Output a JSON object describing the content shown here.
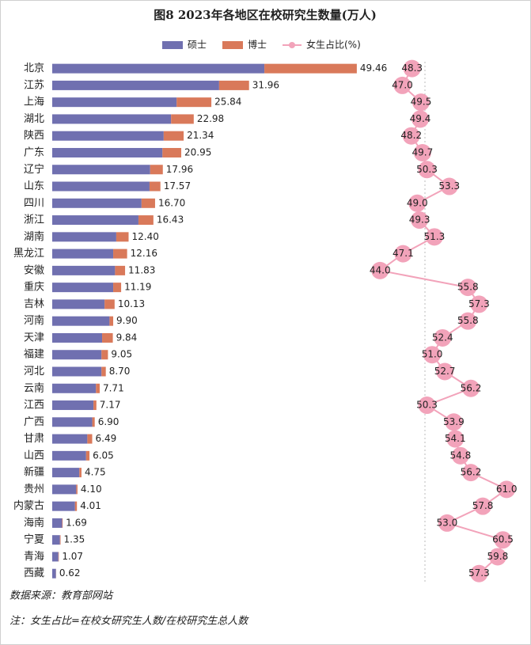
{
  "chart_data": {
    "type": "bar",
    "orientation": "horizontal",
    "stacked": true,
    "title": "图8 2023年各地区在校研究生数量(万人)",
    "categories": [
      "北京",
      "江苏",
      "上海",
      "湖北",
      "陕西",
      "广东",
      "辽宁",
      "山东",
      "四川",
      "浙江",
      "湖南",
      "黑龙江",
      "安徽",
      "重庆",
      "吉林",
      "河南",
      "天津",
      "福建",
      "河北",
      "云南",
      "江西",
      "广西",
      "甘肃",
      "山西",
      "新疆",
      "贵州",
      "内蒙古",
      "海南",
      "宁夏",
      "青海",
      "西藏"
    ],
    "xlim": [
      0,
      55
    ],
    "x2lim": [
      41,
      63
    ],
    "series": [
      {
        "name": "硕士",
        "color": "#7070b0",
        "values": [
          34.45,
          27.1,
          20.2,
          19.3,
          18.1,
          17.9,
          15.9,
          15.8,
          14.5,
          14.0,
          10.4,
          9.9,
          10.2,
          9.9,
          8.5,
          9.3,
          8.1,
          8.0,
          8.0,
          7.1,
          6.7,
          6.5,
          5.7,
          5.5,
          4.4,
          3.9,
          3.7,
          1.6,
          1.25,
          1.0,
          0.6
        ]
      },
      {
        "name": "博士",
        "color": "#d9795a",
        "values": [
          15.01,
          4.86,
          5.64,
          3.68,
          3.24,
          3.05,
          2.06,
          1.77,
          2.2,
          2.43,
          2.0,
          2.26,
          1.63,
          1.29,
          1.63,
          0.6,
          1.74,
          1.05,
          0.7,
          0.61,
          0.47,
          0.4,
          0.79,
          0.55,
          0.35,
          0.2,
          0.31,
          0.09,
          0.1,
          0.07,
          0.02
        ]
      },
      {
        "name": "女生占比(%)",
        "type": "line",
        "axis": "x2",
        "color": "#f2a3ba",
        "values": [
          48.3,
          47.0,
          49.5,
          49.4,
          48.2,
          49.7,
          50.3,
          53.3,
          49.0,
          49.3,
          51.3,
          47.1,
          44.0,
          55.8,
          57.3,
          55.8,
          52.4,
          51.0,
          52.7,
          56.2,
          50.3,
          53.9,
          54.1,
          54.8,
          56.2,
          61.0,
          57.8,
          53.0,
          60.5,
          59.8,
          57.3
        ],
        "value_labels": [
          "48.3",
          "47.0",
          "49.5",
          "49.4",
          "48.2",
          "49.7",
          "50.3",
          "53.3",
          "49.0",
          "49.3",
          "51.3",
          "47.1",
          "44.0",
          "55.8",
          "57.3",
          "55.8",
          "52.4",
          "51.0",
          "52.7",
          "56.2",
          "50.3",
          "53.9",
          "54.1",
          "54.8",
          "56.2",
          "61.0",
          "57.8",
          "53.0",
          "60.5",
          "59.8",
          "57.3"
        ]
      }
    ],
    "total_labels": [
      "49.46",
      "31.96",
      "25.84",
      "22.98",
      "21.34",
      "20.95",
      "17.96",
      "17.57",
      "16.70",
      "16.43",
      "12.40",
      "12.16",
      "11.83",
      "11.19",
      "10.13",
      "9.90",
      "9.84",
      "9.05",
      "8.70",
      "7.71",
      "7.17",
      "6.90",
      "6.49",
      "6.05",
      "4.75",
      "4.10",
      "4.01",
      "1.69",
      "1.35",
      "1.07",
      "0.62"
    ],
    "source": "数据来源：教育部网站",
    "note": "注：女生占比=在校女研究生人数/在校研究生总人数"
  }
}
